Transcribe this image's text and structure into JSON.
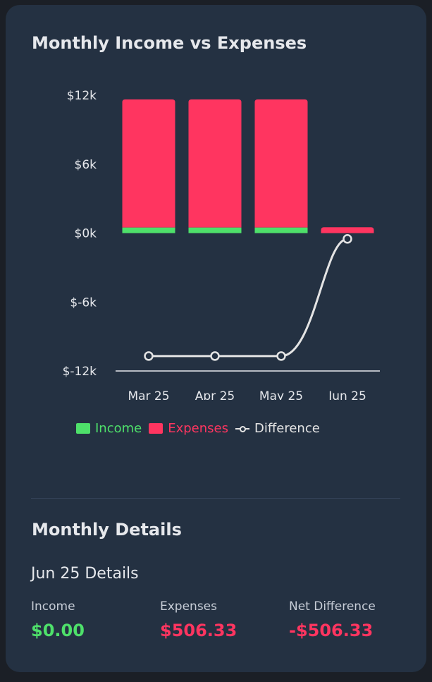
{
  "card": {
    "title": "Monthly Income vs Expenses"
  },
  "chart_data": {
    "type": "bar",
    "categories": [
      "Mar 25",
      "Apr 25",
      "May 25",
      "Jun 25"
    ],
    "series": [
      {
        "name": "Income",
        "type": "bar",
        "color": "#4ee06a",
        "values": [
          480,
          480,
          480,
          0
        ]
      },
      {
        "name": "Expenses",
        "type": "bar",
        "color": "#ff3560",
        "values": [
          11150,
          11150,
          11150,
          506.33
        ]
      },
      {
        "name": "Difference",
        "type": "line",
        "color": "#e4e4e4",
        "values": [
          -10700,
          -10700,
          -10700,
          -506.33
        ]
      }
    ],
    "yticks": [
      "$12k",
      "$6k",
      "$0k",
      "$-6k",
      "$-12k"
    ],
    "ylim": [
      -12000,
      12000
    ],
    "grid": false,
    "legend": "bottom"
  },
  "legend": {
    "income": "Income",
    "expenses": "Expenses",
    "difference": "Difference"
  },
  "details": {
    "section_title": "Monthly Details",
    "month_title": "Jun 25 Details",
    "income_label": "Income",
    "income_value": "$0.00",
    "expenses_label": "Expenses",
    "expenses_value": "$506.33",
    "net_label": "Net Difference",
    "net_value": "-$506.33"
  },
  "colors": {
    "income": "#4ee06a",
    "expenses": "#ff3560",
    "difference": "#e4e4e4",
    "card_bg": "#243142"
  }
}
